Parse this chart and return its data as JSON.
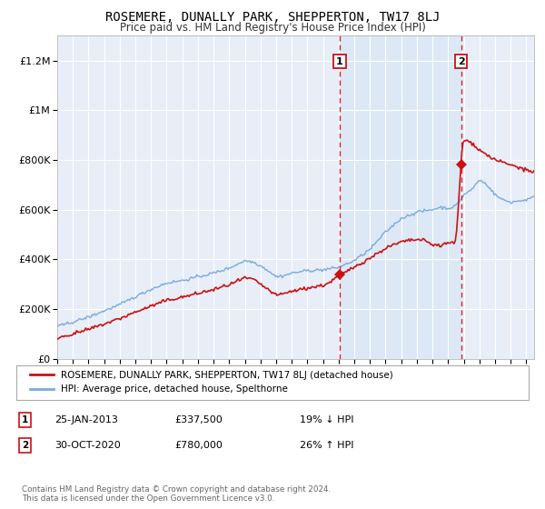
{
  "title": "ROSEMERE, DUNALLY PARK, SHEPPERTON, TW17 8LJ",
  "subtitle": "Price paid vs. HM Land Registry's House Price Index (HPI)",
  "ylabel_ticks": [
    "£0",
    "£200K",
    "£400K",
    "£600K",
    "£800K",
    "£1M",
    "£1.2M"
  ],
  "ytick_values": [
    0,
    200000,
    400000,
    600000,
    800000,
    1000000,
    1200000
  ],
  "ylim": [
    0,
    1300000
  ],
  "xlim_start": 1995.0,
  "xlim_end": 2025.5,
  "background_color": "#ffffff",
  "plot_bg_color": "#e8eef8",
  "shade_bg_color": "#dce8f5",
  "grid_color": "#ffffff",
  "sale1_x": 2013.07,
  "sale1_y": 337500,
  "sale2_x": 2020.83,
  "sale2_y": 780000,
  "vline_color": "#dd2222",
  "vline_style": "--",
  "legend_label1": "ROSEMERE, DUNALLY PARK, SHEPPERTON, TW17 8LJ (detached house)",
  "legend_label2": "HPI: Average price, detached house, Spelthorne",
  "line1_color": "#cc1111",
  "line2_color": "#7aaadd",
  "annotation1_label": "1",
  "annotation2_label": "2",
  "ann1_date": "25-JAN-2013",
  "ann1_price": "£337,500",
  "ann1_hpi": "19% ↓ HPI",
  "ann2_date": "30-OCT-2020",
  "ann2_price": "£780,000",
  "ann2_hpi": "26% ↑ HPI",
  "footer": "Contains HM Land Registry data © Crown copyright and database right 2024.\nThis data is licensed under the Open Government Licence v3.0."
}
